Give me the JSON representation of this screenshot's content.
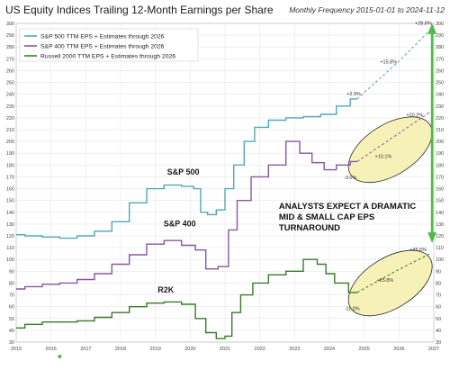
{
  "header": {
    "title": "US Equity Indices Trailing 12-Month Earnings per Share",
    "subtitle": "Monthly Frequency 2015-01-01 to 2024-11-12"
  },
  "chart_data": {
    "type": "line",
    "title": "US Equity Indices Trailing 12-Month Earnings per Share",
    "subtitle": "Monthly Frequency 2015-01-01 to 2024-11-12",
    "xlim": [
      2015,
      2027
    ],
    "ylim": [
      30,
      300
    ],
    "x_ticks": [
      "2015",
      "2016",
      "2017",
      "2018",
      "2019",
      "2020",
      "2021",
      "2022",
      "2023",
      "2024",
      "2025",
      "2026",
      "2027"
    ],
    "y_ticks": [
      "30",
      "40",
      "50",
      "60",
      "70",
      "80",
      "90",
      "100",
      "110",
      "120",
      "130",
      "140",
      "150",
      "160",
      "170",
      "180",
      "190",
      "200",
      "210",
      "220",
      "230",
      "240",
      "250",
      "260",
      "270",
      "280",
      "290",
      "300"
    ],
    "grid": true,
    "legend_position": "top-left",
    "series": [
      {
        "name": "S&P 500 TTM EPS + Estimates through 2026",
        "label": "S&P 500",
        "color": "#4fa8b8",
        "points": [
          [
            2015.0,
            121
          ],
          [
            2015.5,
            120
          ],
          [
            2016.0,
            119
          ],
          [
            2016.5,
            118
          ],
          [
            2017.0,
            120
          ],
          [
            2017.5,
            124
          ],
          [
            2018.0,
            132
          ],
          [
            2018.5,
            148
          ],
          [
            2019.0,
            160
          ],
          [
            2019.5,
            163
          ],
          [
            2020.0,
            162
          ],
          [
            2020.2,
            160
          ],
          [
            2020.4,
            140
          ],
          [
            2020.6,
            138
          ],
          [
            2020.9,
            142
          ],
          [
            2021.1,
            160
          ],
          [
            2021.4,
            180
          ],
          [
            2021.7,
            200
          ],
          [
            2022.0,
            212
          ],
          [
            2022.5,
            218
          ],
          [
            2023.0,
            220
          ],
          [
            2023.5,
            221
          ],
          [
            2024.0,
            223
          ],
          [
            2024.4,
            230
          ],
          [
            2024.8,
            236
          ]
        ],
        "projection": [
          [
            2024.8,
            236
          ],
          [
            2026.0,
            268
          ],
          [
            2026.95,
            296
          ]
        ]
      },
      {
        "name": "S&P 400 TTM EPS + Estimates through 2026",
        "label": "S&P 400",
        "color": "#8a55a4",
        "points": [
          [
            2015.0,
            75
          ],
          [
            2015.5,
            77
          ],
          [
            2016.0,
            79
          ],
          [
            2016.5,
            80
          ],
          [
            2017.0,
            83
          ],
          [
            2017.5,
            88
          ],
          [
            2018.0,
            96
          ],
          [
            2018.5,
            104
          ],
          [
            2019.0,
            113
          ],
          [
            2019.5,
            116
          ],
          [
            2020.0,
            112
          ],
          [
            2020.3,
            108
          ],
          [
            2020.6,
            92
          ],
          [
            2021.0,
            94
          ],
          [
            2021.2,
            125
          ],
          [
            2021.5,
            150
          ],
          [
            2022.0,
            170
          ],
          [
            2022.5,
            180
          ],
          [
            2023.0,
            200
          ],
          [
            2023.3,
            190
          ],
          [
            2023.7,
            182
          ],
          [
            2024.0,
            176
          ],
          [
            2024.4,
            180
          ],
          [
            2024.8,
            183
          ]
        ],
        "projection": [
          [
            2024.8,
            183
          ],
          [
            2025.9,
            205
          ],
          [
            2026.9,
            225
          ]
        ]
      },
      {
        "name": "Russell 2000 TTM EPS + Estimates through 2026",
        "label": "R2K",
        "color": "#3a7a2a",
        "points": [
          [
            2015.0,
            42
          ],
          [
            2015.5,
            45
          ],
          [
            2016.0,
            47
          ],
          [
            2016.5,
            47
          ],
          [
            2017.0,
            48
          ],
          [
            2017.5,
            51
          ],
          [
            2018.0,
            55
          ],
          [
            2018.5,
            60
          ],
          [
            2019.0,
            63
          ],
          [
            2019.5,
            64
          ],
          [
            2020.0,
            62
          ],
          [
            2020.3,
            50
          ],
          [
            2020.6,
            38
          ],
          [
            2020.9,
            33
          ],
          [
            2021.1,
            35
          ],
          [
            2021.3,
            55
          ],
          [
            2021.6,
            70
          ],
          [
            2022.0,
            80
          ],
          [
            2022.5,
            87
          ],
          [
            2023.0,
            90
          ],
          [
            2023.5,
            100
          ],
          [
            2023.8,
            96
          ],
          [
            2024.0,
            88
          ],
          [
            2024.3,
            80
          ],
          [
            2024.8,
            72
          ]
        ],
        "projection": [
          [
            2024.8,
            72
          ],
          [
            2025.9,
            90
          ],
          [
            2026.9,
            105
          ]
        ]
      }
    ],
    "annotations": [
      {
        "text": "+2.9%",
        "x": 2024.7,
        "y": 239
      },
      {
        "text": "+15.8%",
        "x": 2025.7,
        "y": 266
      },
      {
        "text": "+28.8%",
        "x": 2026.7,
        "y": 299
      },
      {
        "text": "-3.0%",
        "x": 2024.6,
        "y": 168
      },
      {
        "text": "+10.1%",
        "x": 2025.55,
        "y": 186
      },
      {
        "text": "+20.2%",
        "x": 2026.45,
        "y": 221
      },
      {
        "text": "-11.0%",
        "x": 2024.65,
        "y": 57
      },
      {
        "text": "+25.8%",
        "x": 2025.6,
        "y": 81
      },
      {
        "text": "+45.6%",
        "x": 2026.55,
        "y": 107
      }
    ],
    "callout": [
      "ANALYSTS EXPECT A DRAMATIC",
      "MID & SMALL CAP EPS",
      "TURNAROUND"
    ]
  }
}
